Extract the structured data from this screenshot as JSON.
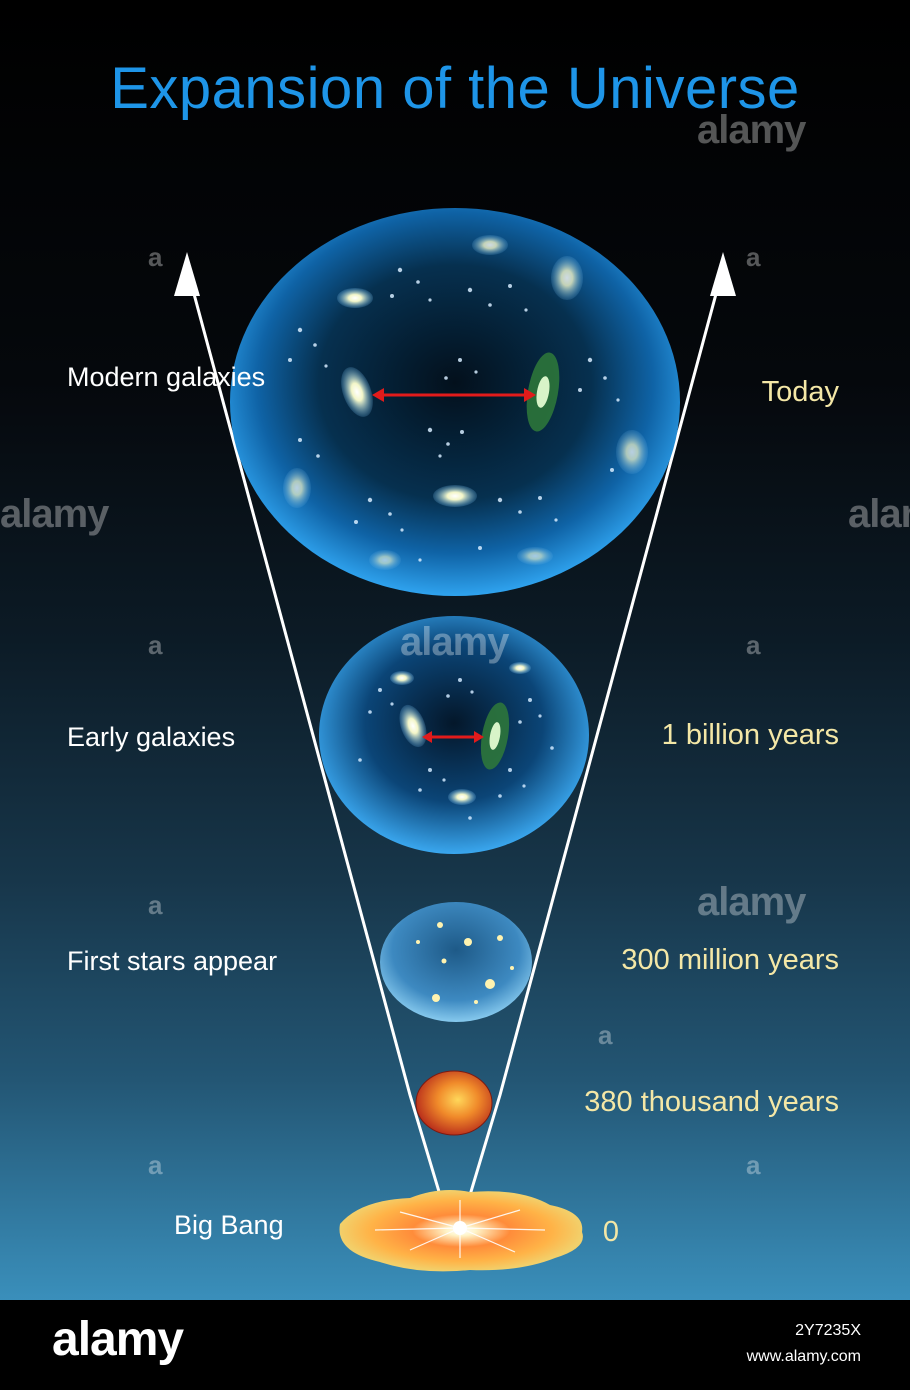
{
  "title": "Expansion of the Universe",
  "stages": [
    {
      "event": "Modern galaxies",
      "time": "Today"
    },
    {
      "event": "Early galaxies",
      "time": "1 billion years"
    },
    {
      "event": "First stars appear",
      "time": "300 million years"
    },
    {
      "event": "",
      "time": "380 thousand years"
    },
    {
      "event": "Big Bang",
      "time": "0"
    }
  ],
  "watermark": {
    "text": "alamy",
    "letter": "a"
  },
  "footer": {
    "brand": "alamy",
    "image_id": "2Y7235X",
    "url": "www.alamy.com"
  },
  "colors": {
    "title": "#1e95e8",
    "time_labels": "#f4e7a6",
    "distance_arrow": "#e21b1b",
    "sphere": "#1a8fe0"
  }
}
